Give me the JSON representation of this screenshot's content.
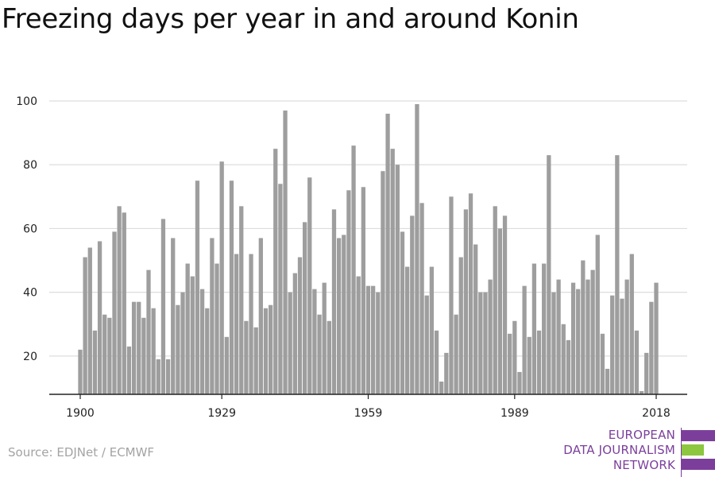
{
  "title": "Freezing days per year in and around Konin",
  "source": "Source: EDJNet / ECMWF",
  "logo": {
    "lines": [
      "EUROPEAN",
      "DATA JOURNALISM",
      "NETWORK"
    ],
    "purple": "#7b3f9b",
    "green": "#8dc63f"
  },
  "colors": {
    "bar": "#9e9e9e",
    "grid": "#dddddd",
    "axis": "#222222"
  },
  "chart_data": {
    "type": "bar",
    "title": "Freezing days per year in and around Konin",
    "xlabel": "",
    "ylabel": "",
    "ylim": [
      8,
      100
    ],
    "yticks": [
      20,
      40,
      60,
      80,
      100
    ],
    "xticks": [
      1900,
      1929,
      1959,
      1989,
      2018
    ],
    "grid": true,
    "x": [
      1900,
      1901,
      1902,
      1903,
      1904,
      1905,
      1906,
      1907,
      1908,
      1909,
      1910,
      1911,
      1912,
      1913,
      1914,
      1915,
      1916,
      1917,
      1918,
      1919,
      1920,
      1921,
      1922,
      1923,
      1924,
      1925,
      1926,
      1927,
      1928,
      1929,
      1930,
      1931,
      1932,
      1933,
      1934,
      1935,
      1936,
      1937,
      1938,
      1939,
      1940,
      1941,
      1942,
      1943,
      1944,
      1945,
      1946,
      1947,
      1948,
      1949,
      1950,
      1951,
      1952,
      1953,
      1954,
      1955,
      1956,
      1957,
      1958,
      1959,
      1960,
      1961,
      1962,
      1963,
      1964,
      1965,
      1966,
      1967,
      1968,
      1969,
      1970,
      1971,
      1972,
      1973,
      1974,
      1975,
      1976,
      1977,
      1978,
      1979,
      1980,
      1981,
      1982,
      1983,
      1984,
      1985,
      1986,
      1987,
      1988,
      1989,
      1990,
      1991,
      1992,
      1993,
      1994,
      1995,
      1996,
      1997,
      1998,
      1999,
      2000,
      2001,
      2002,
      2003,
      2004,
      2005,
      2006,
      2007,
      2008,
      2009,
      2010,
      2011,
      2012,
      2013,
      2014,
      2015,
      2016,
      2017,
      2018
    ],
    "values": [
      22,
      51,
      54,
      28,
      56,
      33,
      32,
      59,
      67,
      65,
      23,
      37,
      37,
      32,
      47,
      35,
      19,
      63,
      19,
      57,
      36,
      40,
      49,
      45,
      75,
      41,
      35,
      57,
      49,
      81,
      26,
      75,
      52,
      67,
      31,
      52,
      29,
      57,
      35,
      36,
      85,
      74,
      97,
      40,
      46,
      51,
      62,
      76,
      41,
      33,
      43,
      31,
      66,
      57,
      58,
      72,
      86,
      45,
      73,
      42,
      42,
      40,
      78,
      96,
      85,
      80,
      59,
      48,
      64,
      99,
      68,
      39,
      48,
      28,
      12,
      21,
      70,
      33,
      51,
      66,
      71,
      55,
      40,
      40,
      44,
      67,
      60,
      64,
      27,
      31,
      15,
      42,
      26,
      49,
      28,
      49,
      83,
      40,
      44,
      30,
      25,
      43,
      41,
      50,
      44,
      47,
      58,
      27,
      16,
      39,
      83,
      38,
      44,
      52,
      28,
      9,
      21,
      37,
      43
    ]
  }
}
